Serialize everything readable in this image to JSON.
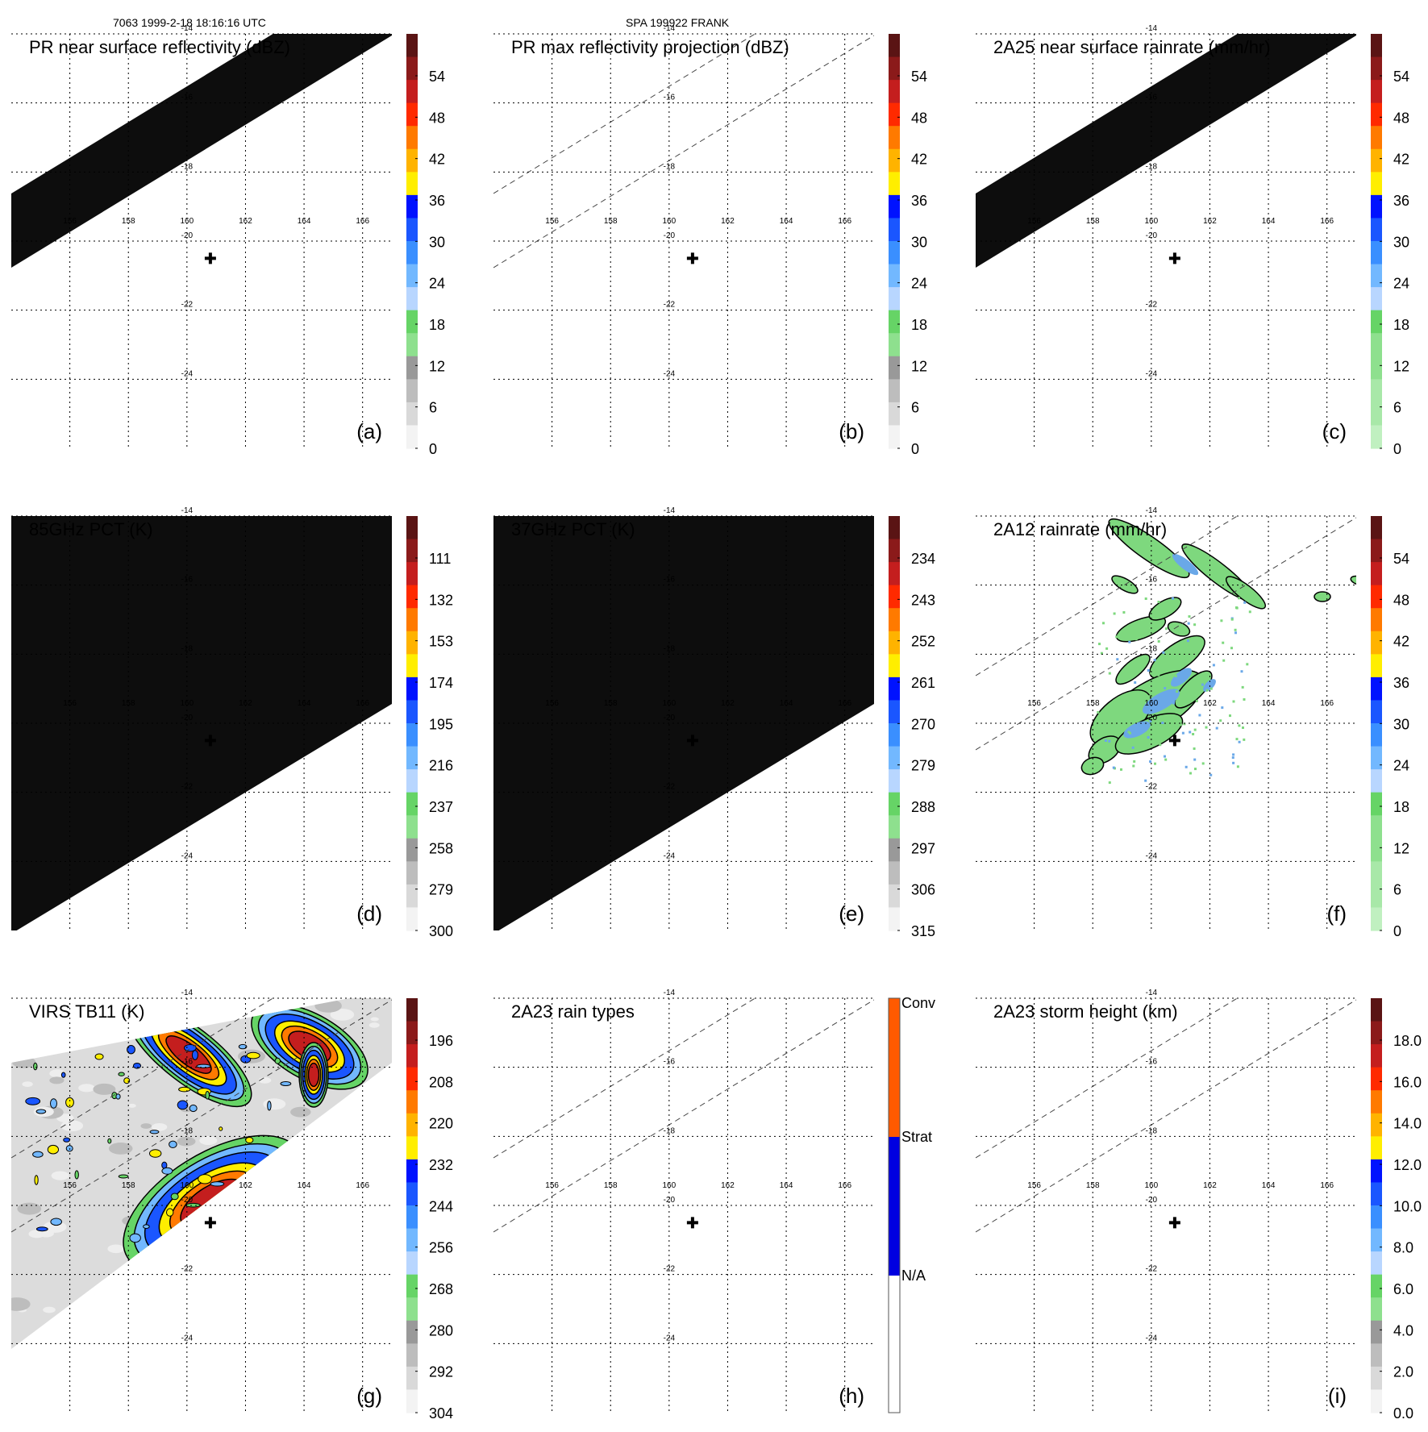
{
  "header": {
    "orbit_time": "7063 1999-2-18 18:16:16 UTC",
    "storm": "SPA 199922 FRANK"
  },
  "map": {
    "lon_labels": [
      "156",
      "158",
      "160",
      "162",
      "164",
      "166"
    ],
    "lat_labels": [
      "-14",
      "-16",
      "-18",
      "-20",
      "-22",
      "-24"
    ],
    "lon_range": [
      154,
      167
    ],
    "lat_range": [
      -14,
      -26
    ],
    "storm_center": {
      "lon": 160.8,
      "lat": -20.5
    }
  },
  "colors": {
    "swath": "#0d0d0d",
    "contour": "#000000",
    "dashed_line": "#444444"
  },
  "chart_data": [
    {
      "id": "a",
      "type": "heatmap",
      "title": "PR near surface reflectivity (dBZ)",
      "panel_label": "(a)",
      "colorbar_ticks": [
        "54",
        "48",
        "42",
        "36",
        "30",
        "24",
        "18",
        "12",
        "6",
        "0"
      ],
      "colorbar_range": [
        0,
        60
      ],
      "swath": "pr"
    },
    {
      "id": "b",
      "type": "heatmap",
      "title": "PR max reflectivity projection (dBZ)",
      "panel_label": "(b)",
      "colorbar_ticks": [
        "54",
        "48",
        "42",
        "36",
        "30",
        "24",
        "18",
        "12",
        "6",
        "0"
      ],
      "colorbar_range": [
        0,
        60
      ],
      "swath": "none"
    },
    {
      "id": "c",
      "type": "heatmap",
      "title": "2A25 near surface rainrate (mm/hr)",
      "panel_label": "(c)",
      "colorbar_ticks": [
        "54",
        "48",
        "42",
        "36",
        "30",
        "24",
        "18",
        "12",
        "6",
        "0"
      ],
      "colorbar_range": [
        0,
        60
      ],
      "swath": "pr"
    },
    {
      "id": "d",
      "type": "heatmap",
      "title": "85GHz PCT (K)",
      "panel_label": "(d)",
      "colorbar_ticks": [
        "111",
        "132",
        "153",
        "174",
        "195",
        "216",
        "237",
        "258",
        "279",
        "300"
      ],
      "colorbar_range": [
        300,
        90
      ],
      "swath": "tmi"
    },
    {
      "id": "e",
      "type": "heatmap",
      "title": "37GHz PCT (K)",
      "panel_label": "(e)",
      "colorbar_ticks": [
        "234",
        "243",
        "252",
        "261",
        "270",
        "279",
        "288",
        "297",
        "306",
        "315"
      ],
      "colorbar_range": [
        315,
        225
      ],
      "swath": "tmi"
    },
    {
      "id": "f",
      "type": "heatmap",
      "title": "2A12 rainrate (mm/hr)",
      "panel_label": "(f)",
      "colorbar_ticks": [
        "54",
        "48",
        "42",
        "36",
        "30",
        "24",
        "18",
        "12",
        "6",
        "0"
      ],
      "colorbar_range": [
        0,
        60
      ],
      "swath": "rain"
    },
    {
      "id": "g",
      "type": "heatmap",
      "title": "VIRS TB11 (K)",
      "panel_label": "(g)",
      "colorbar_ticks": [
        "196",
        "208",
        "220",
        "232",
        "244",
        "256",
        "268",
        "280",
        "292",
        "304"
      ],
      "colorbar_range": [
        304,
        184
      ],
      "swath": "virs"
    },
    {
      "id": "h",
      "type": "heatmap",
      "title": "2A23 rain types",
      "panel_label": "(h)",
      "colorbar_ticks": [
        "Conv",
        "Strat",
        "N/A"
      ],
      "swath": "none"
    },
    {
      "id": "i",
      "type": "heatmap",
      "title": "2A23 storm height (km)",
      "panel_label": "(i)",
      "colorbar_ticks": [
        "18.0",
        "16.0",
        "14.0",
        "12.0",
        "10.0",
        "8.0",
        "6.0",
        "4.0",
        "2.0",
        "0.0"
      ],
      "colorbar_range": [
        0,
        20
      ],
      "swath": "none"
    }
  ]
}
